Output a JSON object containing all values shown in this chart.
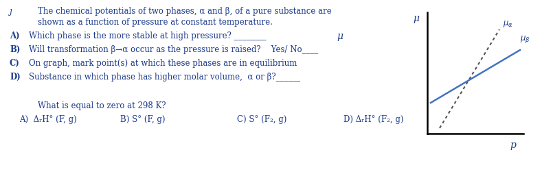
{
  "background_color": "#ffffff",
  "text_color": "#1a3a8a",
  "title_prefix": "ȷ",
  "title_line1": "The chemical potentials of two phases, α and β, of a pure substance are",
  "title_line2": "shown as a function of pressure at constant temperature.",
  "qA_label": "A)",
  "qA_text": "Which phase is the more stable at high pressure? ________",
  "qB_label": "B)",
  "qB_text": "Will transformation β→α occur as the pressure is raised?    Yes/ No____",
  "qC_label": "C)",
  "qC_text": "On graph, mark point(s) at which these phases are in equilibrium",
  "qD_label": "D)",
  "qD_text": "Substance in which phase has higher molar volume,  α or β?______",
  "mu_label": "μ",
  "p_label": "p",
  "question2_title": "What is equal to zero at 298 K?",
  "q2A": "A)  ΔᵣH° (F, g)",
  "q2B": "B) S° (F, g)",
  "q2C": "C) S° (F₂, g)",
  "q2D": "D) ΔᵣH° (F₂, g)",
  "alpha_line_color": "#555555",
  "beta_line_color": "#4472c4",
  "orange_bar_color": "#e8972a",
  "font_size_main": 8.5,
  "font_size_label": 9.5,
  "font_size_mu": 10.0
}
